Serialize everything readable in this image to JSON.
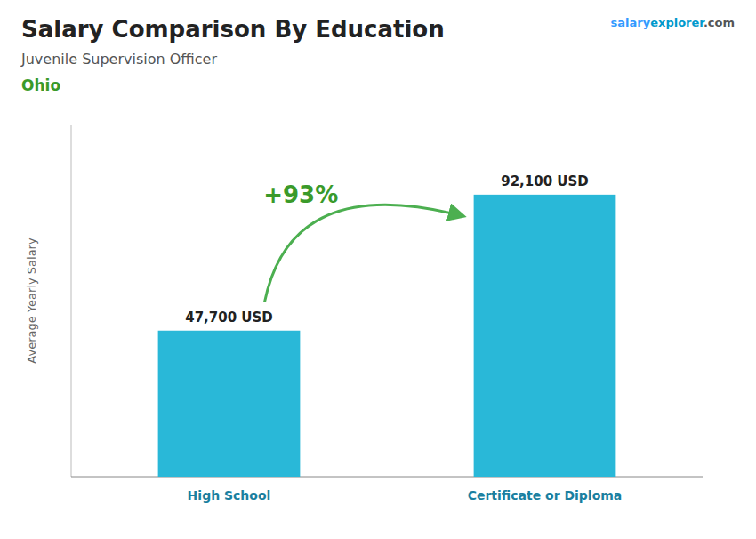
{
  "chart_data": {
    "type": "bar",
    "title": "Salary Comparison By Education",
    "subtitle": "Juvenile Supervision Officer",
    "y_label": "Average Yearly Salary",
    "annotations": [
      "+93%",
      "Ohio",
      "salary",
      "explorer",
      ".com"
    ],
    "categories": [
      "High School",
      "Certificate or Diploma"
    ],
    "values": [
      47700,
      92100
    ],
    "value_labels": [
      "47,700 USD",
      "92,100 USD"
    ],
    "data_labels": true,
    "color": "#29b8d8",
    "ylim": [
      0,
      115000
    ],
    "tick_labels": "x"
  }
}
